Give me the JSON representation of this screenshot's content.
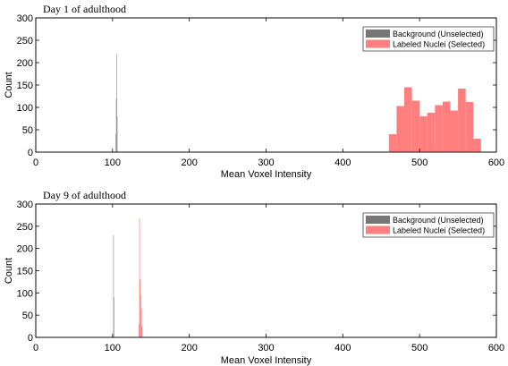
{
  "chart_data": [
    {
      "type": "bar",
      "title": "Day 1 of adulthood",
      "xlabel": "Mean Voxel Intensity",
      "ylabel": "Count",
      "xlim": [
        0,
        600
      ],
      "ylim": [
        0,
        300
      ],
      "xticks": [
        0,
        100,
        200,
        300,
        400,
        500,
        600
      ],
      "yticks": [
        0,
        50,
        100,
        150,
        200,
        250,
        300
      ],
      "grid": false,
      "legend_position": "top-right",
      "series": [
        {
          "name": "Background (Unselected)",
          "color": "#777777",
          "bins": [
            {
              "x0": 104.0,
              "x1": 104.6,
              "count": 40
            },
            {
              "x0": 104.6,
              "x1": 105.2,
              "count": 120
            },
            {
              "x0": 105.2,
              "x1": 105.8,
              "count": 220
            },
            {
              "x0": 105.8,
              "x1": 106.4,
              "count": 80
            }
          ]
        },
        {
          "name": "Labeled Nuclei (Selected)",
          "color": "#ff7f7f",
          "bins": [
            {
              "x0": 460,
              "x1": 470,
              "count": 40
            },
            {
              "x0": 470,
              "x1": 480,
              "count": 103
            },
            {
              "x0": 480,
              "x1": 490,
              "count": 145
            },
            {
              "x0": 490,
              "x1": 500,
              "count": 115
            },
            {
              "x0": 500,
              "x1": 510,
              "count": 80
            },
            {
              "x0": 510,
              "x1": 520,
              "count": 88
            },
            {
              "x0": 520,
              "x1": 530,
              "count": 105
            },
            {
              "x0": 530,
              "x1": 540,
              "count": 113
            },
            {
              "x0": 540,
              "x1": 550,
              "count": 93
            },
            {
              "x0": 550,
              "x1": 560,
              "count": 142
            },
            {
              "x0": 560,
              "x1": 570,
              "count": 112
            },
            {
              "x0": 570,
              "x1": 580,
              "count": 30
            }
          ]
        }
      ]
    },
    {
      "type": "bar",
      "title": "Day 9 of adulthood",
      "xlabel": "Mean Voxel Intensity",
      "ylabel": "Count",
      "xlim": [
        0,
        600
      ],
      "ylim": [
        0,
        300
      ],
      "xticks": [
        0,
        100,
        200,
        300,
        400,
        500,
        600
      ],
      "yticks": [
        0,
        50,
        100,
        150,
        200,
        250,
        300
      ],
      "grid": false,
      "legend_position": "top-right",
      "series": [
        {
          "name": "Background (Unselected)",
          "color": "#777777",
          "bins": [
            {
              "x0": 101.0,
              "x1": 101.6,
              "count": 230
            },
            {
              "x0": 101.6,
              "x1": 102.2,
              "count": 90
            }
          ]
        },
        {
          "name": "Labeled Nuclei (Selected)",
          "color": "#ff7f7f",
          "bins": [
            {
              "x0": 134.0,
              "x1": 134.8,
              "count": 30
            },
            {
              "x0": 134.8,
              "x1": 135.6,
              "count": 268
            },
            {
              "x0": 135.6,
              "x1": 136.4,
              "count": 130
            },
            {
              "x0": 136.4,
              "x1": 137.2,
              "count": 95
            },
            {
              "x0": 137.2,
              "x1": 138.0,
              "count": 65
            },
            {
              "x0": 138.0,
              "x1": 138.8,
              "count": 25
            }
          ]
        }
      ]
    }
  ]
}
